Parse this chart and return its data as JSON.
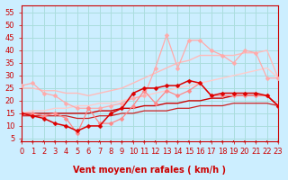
{
  "xlabel": "Vent moyen/en rafales ( km/h )",
  "background_color": "#cceeff",
  "grid_color": "#aadddd",
  "x": [
    0,
    1,
    2,
    3,
    4,
    5,
    6,
    7,
    8,
    9,
    10,
    11,
    12,
    13,
    14,
    15,
    16,
    17,
    18,
    19,
    20,
    21,
    22,
    23
  ],
  "ylim": [
    4,
    58
  ],
  "xlim": [
    0,
    23
  ],
  "yticks": [
    5,
    10,
    15,
    20,
    25,
    30,
    35,
    40,
    45,
    50,
    55
  ],
  "series": [
    {
      "name": "upper_pink_line",
      "color": "#ffaaaa",
      "linewidth": 0.9,
      "marker": "D",
      "markersize": 2.5,
      "y": [
        26,
        27,
        23,
        22,
        19,
        17,
        17,
        17,
        18,
        19,
        21,
        22,
        33,
        46,
        33,
        44,
        44,
        40,
        38,
        35,
        40,
        39,
        29,
        29
      ]
    },
    {
      "name": "smooth_upper_pink",
      "color": "#ffbbbb",
      "linewidth": 1.0,
      "marker": null,
      "y": [
        25,
        25,
        24,
        24,
        23,
        23,
        22,
        23,
        24,
        25,
        27,
        29,
        31,
        33,
        35,
        36,
        38,
        38,
        38,
        38,
        39,
        39,
        40,
        29
      ]
    },
    {
      "name": "smooth_upper_pink2",
      "color": "#ffcccc",
      "linewidth": 1.0,
      "marker": null,
      "y": [
        15,
        16,
        16,
        17,
        17,
        18,
        18,
        19,
        19,
        20,
        21,
        22,
        23,
        24,
        25,
        26,
        27,
        28,
        29,
        30,
        31,
        32,
        33,
        29
      ]
    },
    {
      "name": "mid_pink_scatter",
      "color": "#ff8888",
      "linewidth": 0.9,
      "marker": "D",
      "markersize": 2.5,
      "y": [
        15,
        15,
        14,
        15,
        13,
        7,
        17,
        11,
        11,
        13,
        18,
        24,
        19,
        24,
        22,
        24,
        27,
        22,
        22,
        22,
        22,
        22,
        22,
        18
      ]
    },
    {
      "name": "dark_red_scatter",
      "color": "#dd0000",
      "linewidth": 1.1,
      "marker": "D",
      "markersize": 2.5,
      "y": [
        15,
        14,
        13,
        11,
        10,
        8,
        10,
        10,
        15,
        17,
        23,
        25,
        25,
        26,
        26,
        28,
        27,
        22,
        23,
        23,
        23,
        23,
        22,
        18
      ]
    },
    {
      "name": "dark_red_smooth",
      "color": "#cc0000",
      "linewidth": 1.0,
      "marker": null,
      "y": [
        15,
        15,
        15,
        15,
        15,
        15,
        15,
        16,
        16,
        17,
        17,
        18,
        18,
        19,
        19,
        20,
        20,
        21,
        21,
        22,
        22,
        22,
        22,
        18
      ]
    },
    {
      "name": "bottom_red",
      "color": "#cc2222",
      "linewidth": 0.9,
      "marker": null,
      "y": [
        14,
        14,
        14,
        14,
        14,
        13,
        13,
        14,
        14,
        15,
        15,
        16,
        16,
        16,
        17,
        17,
        18,
        18,
        18,
        19,
        19,
        19,
        19,
        18
      ]
    }
  ],
  "arrow_color": "#cc0000",
  "xlabel_color": "#cc0000",
  "xlabel_fontsize": 7,
  "tick_color": "#cc0000",
  "tick_fontsize": 6,
  "spine_color": "#cc0000"
}
